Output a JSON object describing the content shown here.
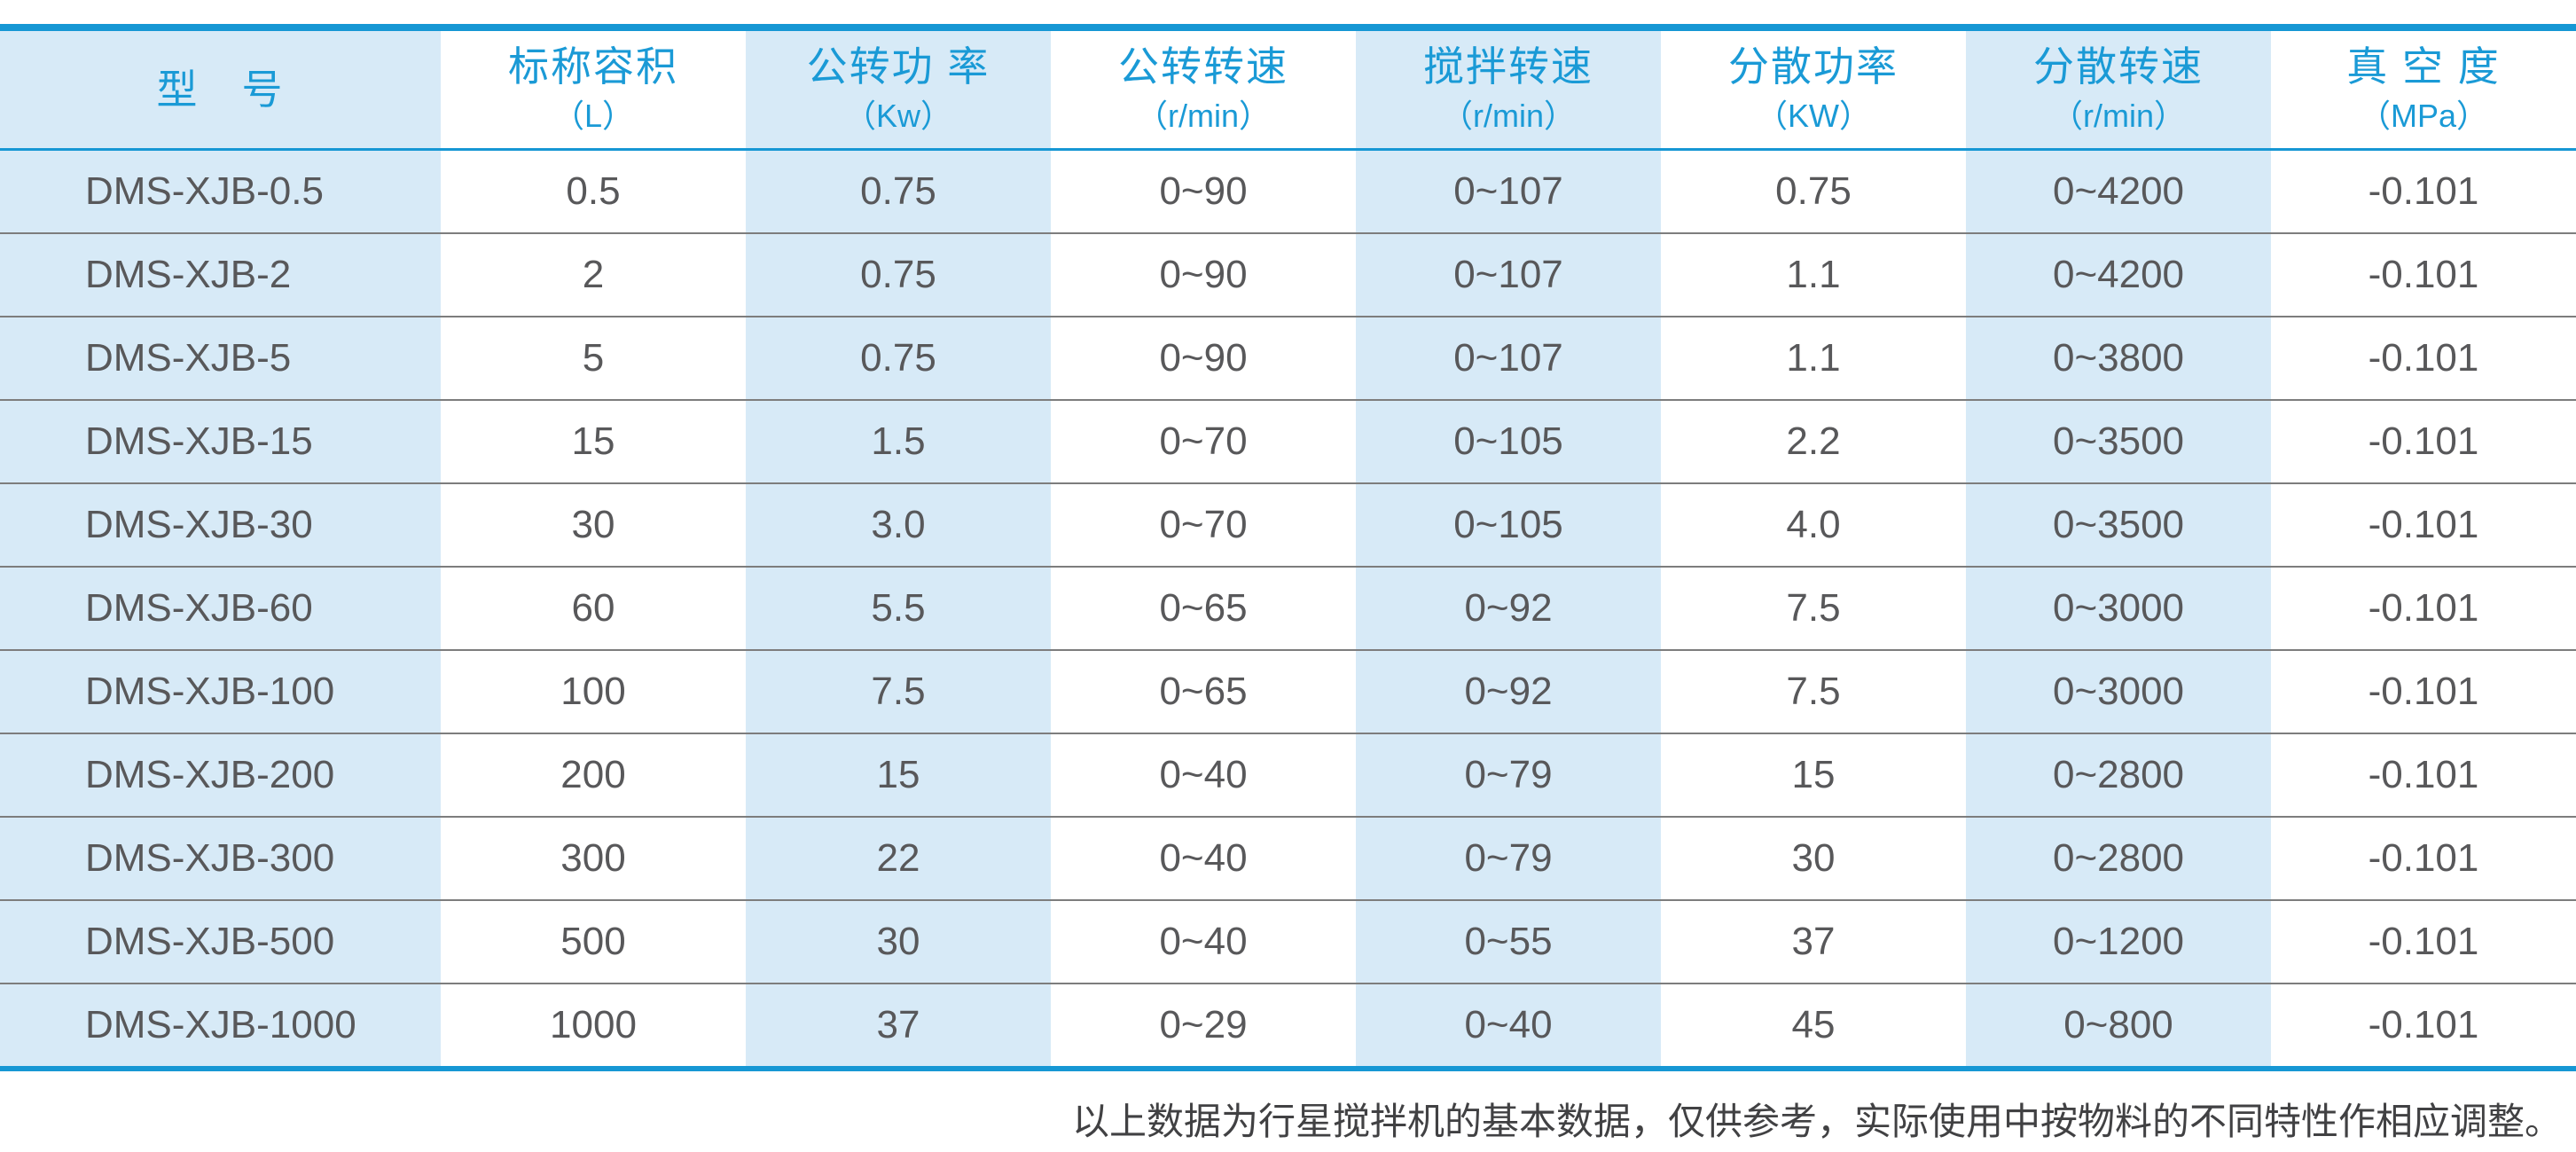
{
  "colors": {
    "accent_blue": "#1697d4",
    "header_text_blue": "#1a9ad6",
    "stripe_light_blue": "#d7eaf7",
    "body_text_gray": "#58585a",
    "row_divider_gray": "#7d7d7d"
  },
  "table": {
    "columns": [
      {
        "title": "型　号",
        "unit": ""
      },
      {
        "title": "标称容积",
        "unit": "（L）"
      },
      {
        "title": "公转功 率",
        "unit": "（Kw）"
      },
      {
        "title": "公转转速",
        "unit": "（r/min）"
      },
      {
        "title": "搅拌转速",
        "unit": "（r/min）"
      },
      {
        "title": "分散功率",
        "unit": "（KW）"
      },
      {
        "title": "分散转速",
        "unit": "（r/min）"
      },
      {
        "title": "真 空 度",
        "unit": "（MPa）"
      }
    ],
    "rows": [
      [
        "DMS-XJB-0.5",
        "0.5",
        "0.75",
        "0~90",
        "0~107",
        "0.75",
        "0~4200",
        "-0.101"
      ],
      [
        "DMS-XJB-2",
        "2",
        "0.75",
        "0~90",
        "0~107",
        "1.1",
        "0~4200",
        "-0.101"
      ],
      [
        "DMS-XJB-5",
        "5",
        "0.75",
        "0~90",
        "0~107",
        "1.1",
        "0~3800",
        "-0.101"
      ],
      [
        "DMS-XJB-15",
        "15",
        "1.5",
        "0~70",
        "0~105",
        "2.2",
        "0~3500",
        "-0.101"
      ],
      [
        "DMS-XJB-30",
        "30",
        "3.0",
        "0~70",
        "0~105",
        "4.0",
        "0~3500",
        "-0.101"
      ],
      [
        "DMS-XJB-60",
        "60",
        "5.5",
        "0~65",
        "0~92",
        "7.5",
        "0~3000",
        "-0.101"
      ],
      [
        "DMS-XJB-100",
        "100",
        "7.5",
        "0~65",
        "0~92",
        "7.5",
        "0~3000",
        "-0.101"
      ],
      [
        "DMS-XJB-200",
        "200",
        "15",
        "0~40",
        "0~79",
        "15",
        "0~2800",
        "-0.101"
      ],
      [
        "DMS-XJB-300",
        "300",
        "22",
        "0~40",
        "0~79",
        "30",
        "0~2800",
        "-0.101"
      ],
      [
        "DMS-XJB-500",
        "500",
        "30",
        "0~40",
        "0~55",
        "37",
        "0~1200",
        "-0.101"
      ],
      [
        "DMS-XJB-1000",
        "1000",
        "37",
        "0~29",
        "0~40",
        "45",
        "0~800",
        "-0.101"
      ]
    ]
  },
  "footer": {
    "note": "以上数据为行星搅拌机的基本数据，仅供参考，实际使用中按物料的不同特性作相应调整。"
  }
}
